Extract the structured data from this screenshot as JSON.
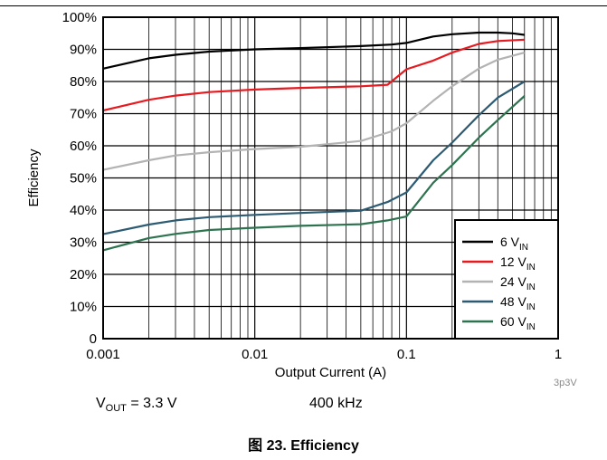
{
  "chart_data": {
    "type": "line",
    "xscale": "log",
    "xlim": [
      0.001,
      1
    ],
    "ylim": [
      0,
      100
    ],
    "xticks": [
      {
        "value": 0.001,
        "label": "0.001"
      },
      {
        "value": 0.01,
        "label": "0.01"
      },
      {
        "value": 0.1,
        "label": "0.1"
      },
      {
        "value": 1,
        "label": "1"
      }
    ],
    "yticks": [
      {
        "value": 0,
        "label": "0"
      },
      {
        "value": 10,
        "label": "10%"
      },
      {
        "value": 20,
        "label": "20%"
      },
      {
        "value": 30,
        "label": "30%"
      },
      {
        "value": 40,
        "label": "40%"
      },
      {
        "value": 50,
        "label": "50%"
      },
      {
        "value": 60,
        "label": "60%"
      },
      {
        "value": 70,
        "label": "70%"
      },
      {
        "value": 80,
        "label": "80%"
      },
      {
        "value": 90,
        "label": "90%"
      },
      {
        "value": 100,
        "label": "100%"
      }
    ],
    "xlabel": "Output Current (A)",
    "ylabel": "Efficiency",
    "grid": true,
    "legend_position": "bottom-right",
    "series": [
      {
        "legend_main": "6 V",
        "legend_sub": "IN",
        "color": "#000000",
        "points": [
          [
            0.001,
            84
          ],
          [
            0.002,
            87.2
          ],
          [
            0.003,
            88.3
          ],
          [
            0.005,
            89.3
          ],
          [
            0.01,
            90
          ],
          [
            0.02,
            90.4
          ],
          [
            0.05,
            91
          ],
          [
            0.08,
            91.5
          ],
          [
            0.1,
            92
          ],
          [
            0.15,
            94
          ],
          [
            0.2,
            94.7
          ],
          [
            0.3,
            95.2
          ],
          [
            0.4,
            95.2
          ],
          [
            0.5,
            95
          ],
          [
            0.6,
            94.5
          ]
        ]
      },
      {
        "legend_main": "12 V",
        "legend_sub": "IN",
        "color": "#e8191f",
        "points": [
          [
            0.001,
            71
          ],
          [
            0.002,
            74.3
          ],
          [
            0.003,
            75.6
          ],
          [
            0.005,
            76.7
          ],
          [
            0.01,
            77.5
          ],
          [
            0.02,
            78
          ],
          [
            0.05,
            78.5
          ],
          [
            0.075,
            79
          ],
          [
            0.1,
            83.8
          ],
          [
            0.15,
            86.5
          ],
          [
            0.2,
            89
          ],
          [
            0.3,
            91.7
          ],
          [
            0.4,
            92.6
          ],
          [
            0.6,
            93
          ]
        ]
      },
      {
        "legend_main": "24 V",
        "legend_sub": "IN",
        "color": "#b3b3b3",
        "points": [
          [
            0.001,
            52.5
          ],
          [
            0.002,
            55.5
          ],
          [
            0.003,
            57
          ],
          [
            0.005,
            58
          ],
          [
            0.01,
            59
          ],
          [
            0.02,
            59.7
          ],
          [
            0.05,
            61.5
          ],
          [
            0.08,
            64.5
          ],
          [
            0.1,
            67
          ],
          [
            0.15,
            74
          ],
          [
            0.2,
            78.5
          ],
          [
            0.3,
            84
          ],
          [
            0.4,
            86.8
          ],
          [
            0.6,
            89
          ]
        ]
      },
      {
        "legend_main": "48 V",
        "legend_sub": "IN",
        "color": "#2c5b73",
        "points": [
          [
            0.001,
            32.5
          ],
          [
            0.002,
            35.5
          ],
          [
            0.003,
            36.8
          ],
          [
            0.005,
            37.8
          ],
          [
            0.01,
            38.5
          ],
          [
            0.02,
            39.1
          ],
          [
            0.05,
            39.8
          ],
          [
            0.075,
            42.5
          ],
          [
            0.1,
            45.5
          ],
          [
            0.15,
            55.5
          ],
          [
            0.2,
            61
          ],
          [
            0.3,
            69.5
          ],
          [
            0.4,
            75
          ],
          [
            0.6,
            80
          ]
        ]
      },
      {
        "legend_main": "60 V",
        "legend_sub": "IN",
        "color": "#2e7350",
        "points": [
          [
            0.001,
            27.5
          ],
          [
            0.002,
            31.3
          ],
          [
            0.003,
            32.6
          ],
          [
            0.005,
            33.8
          ],
          [
            0.01,
            34.5
          ],
          [
            0.02,
            35.1
          ],
          [
            0.05,
            35.6
          ],
          [
            0.075,
            36.8
          ],
          [
            0.1,
            38
          ],
          [
            0.15,
            48.5
          ],
          [
            0.2,
            54
          ],
          [
            0.3,
            62.5
          ],
          [
            0.4,
            68
          ],
          [
            0.6,
            75.5
          ]
        ]
      }
    ]
  },
  "conditions": {
    "vout_main": "V",
    "vout_sub": "OUT",
    "vout_value": " = 3.3 V",
    "frequency": "400 kHz"
  },
  "figure_tag": "3p3V",
  "caption": "图 23. Efficiency"
}
